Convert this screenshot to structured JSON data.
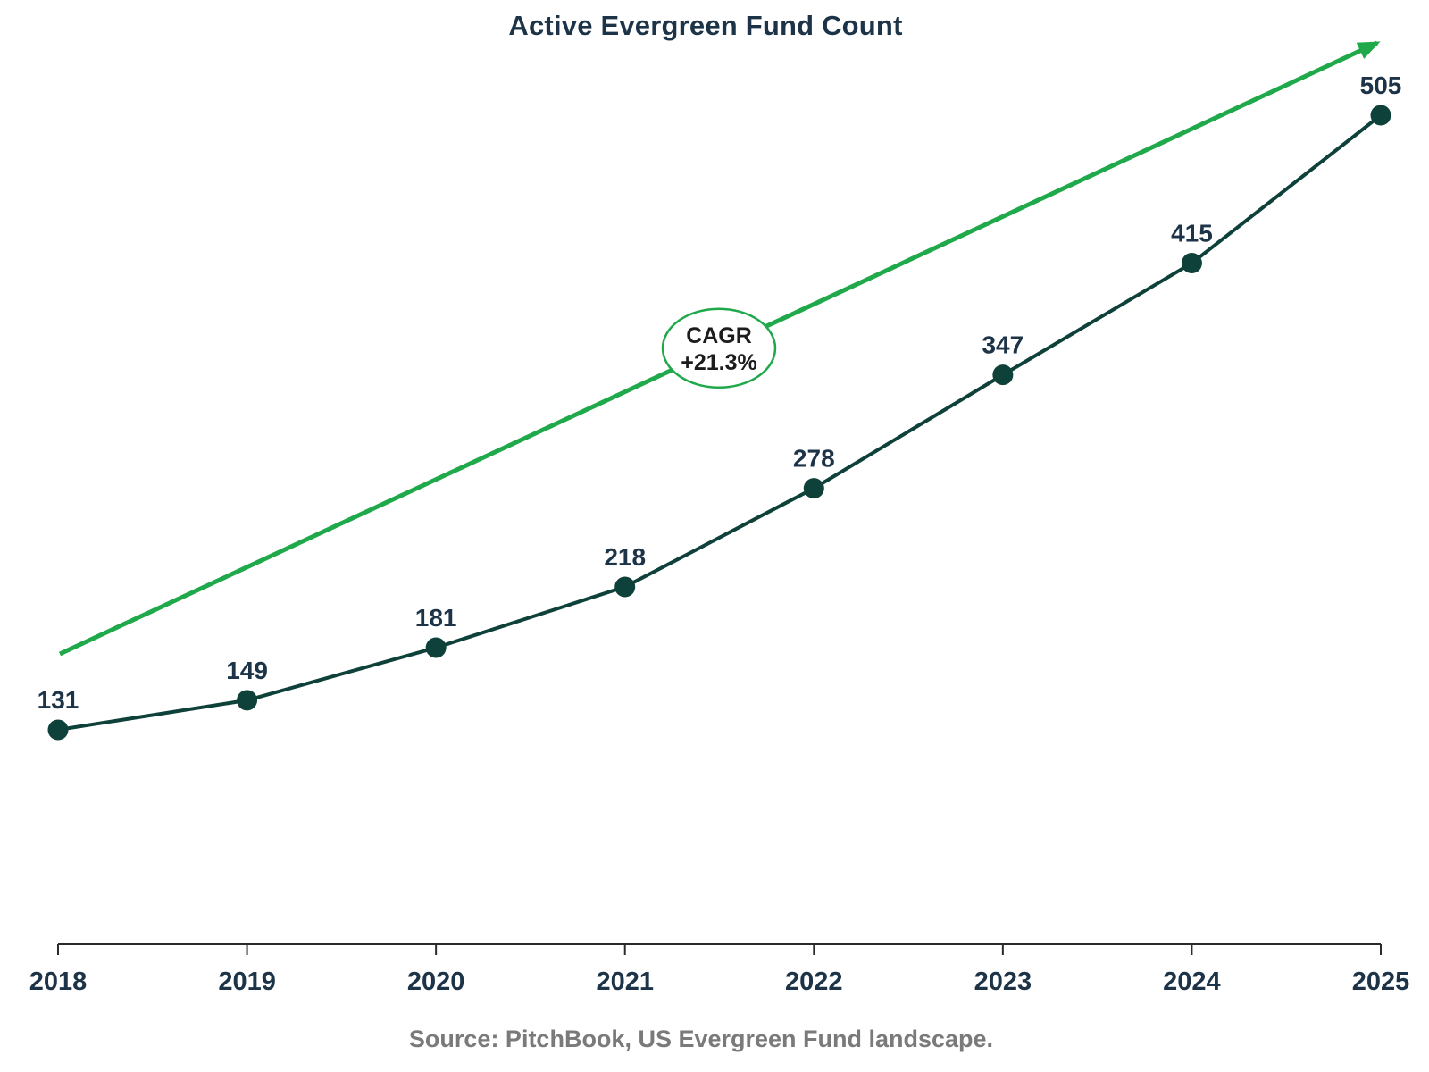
{
  "chart_data": {
    "type": "line",
    "title": "Active Evergreen Fund Count",
    "categories": [
      "2018",
      "2019",
      "2020",
      "2021",
      "2022",
      "2023",
      "2024",
      "2025"
    ],
    "values": [
      131,
      149,
      181,
      218,
      278,
      347,
      415,
      505
    ],
    "data_labels_shown": true,
    "annotation": {
      "line1": "CAGR",
      "line2": "+21.3%"
    },
    "trend_arrow": "straight green arrow from lower-left to upper-right indicating CAGR growth",
    "source": "Source: PitchBook, US Evergreen Fund landscape.",
    "xlabel": "",
    "ylabel": "",
    "y_axis_visible": false,
    "gridlines": false,
    "legend_position": "none",
    "colors": {
      "line_teal": "#0e4139",
      "trend_green": "#1fa94b",
      "label_navy": "#1d3448",
      "badge_text": "#1c1c1c",
      "badge_fill": "#ffffff",
      "axis_dark": "#2b2b2b",
      "source_gray": "#7a7a7a",
      "background": "#ffffff"
    }
  }
}
